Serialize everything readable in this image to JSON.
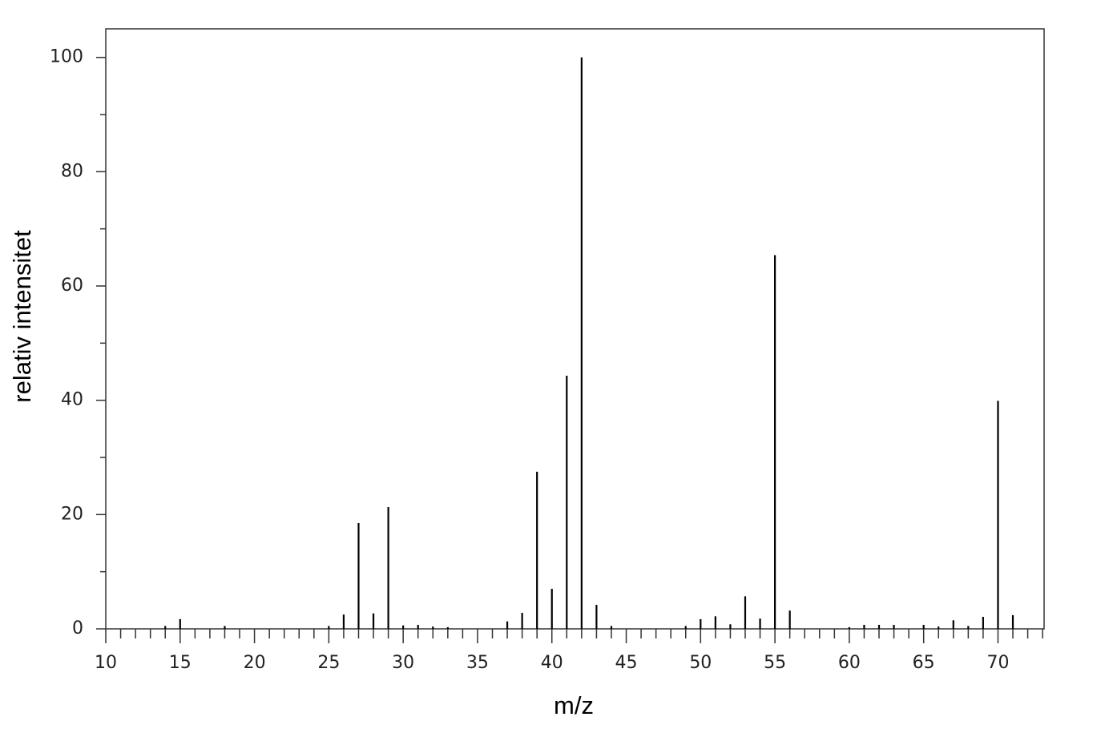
{
  "chart_data": {
    "type": "stem",
    "x_label": "m/z",
    "y_label": "relativ intensitet",
    "x": [
      14,
      15,
      18,
      25,
      26,
      27,
      28,
      29,
      30,
      31,
      32,
      33,
      37,
      38,
      39,
      40,
      41,
      42,
      43,
      44,
      49,
      50,
      51,
      52,
      53,
      54,
      55,
      56,
      60,
      61,
      62,
      63,
      65,
      66,
      67,
      68,
      69,
      70,
      71
    ],
    "values": [
      0.5,
      1.7,
      0.5,
      0.5,
      2.5,
      18.5,
      2.7,
      21.3,
      0.6,
      0.7,
      0.4,
      0.3,
      1.3,
      2.8,
      27.5,
      7.0,
      44.3,
      100,
      4.2,
      0.5,
      0.5,
      1.7,
      2.2,
      0.8,
      5.7,
      1.8,
      65.4,
      3.2,
      0.3,
      0.7,
      0.7,
      0.7,
      0.7,
      0.4,
      1.5,
      0.5,
      2.1,
      39.9,
      2.4
    ],
    "color": "#000000",
    "xlim": [
      10,
      73.1
    ],
    "ylim": [
      0,
      105
    ],
    "xticks": [
      10,
      15,
      20,
      25,
      30,
      35,
      40,
      45,
      50,
      55,
      60,
      65,
      70
    ],
    "xminorticks": [
      11,
      12,
      13,
      14,
      16,
      17,
      18,
      19,
      21,
      22,
      23,
      24,
      26,
      27,
      28,
      29,
      31,
      32,
      33,
      34,
      36,
      37,
      38,
      39,
      41,
      42,
      43,
      44,
      46,
      47,
      48,
      49,
      51,
      52,
      53,
      54,
      56,
      57,
      58,
      59,
      61,
      62,
      63,
      64,
      66,
      67,
      68,
      69,
      71,
      72,
      73
    ],
    "yticks": [
      0,
      20,
      40,
      60,
      80,
      100
    ],
    "yminorticks": [
      10,
      30,
      50,
      70,
      90
    ]
  }
}
